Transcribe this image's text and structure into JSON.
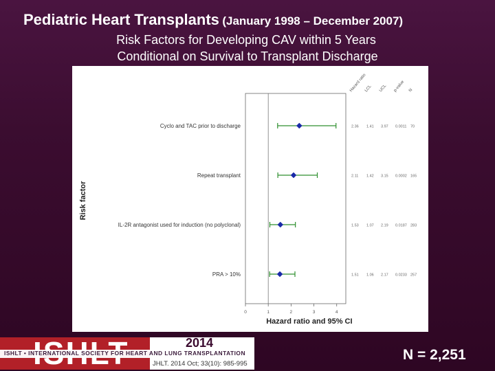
{
  "slide": {
    "title_main": "Pediatric Heart Transplants",
    "title_sub": "(January 1998 – December 2007)",
    "subtitle_line1": "Risk Factors for Developing CAV within 5 Years",
    "subtitle_line2": "Conditional on Survival to Transplant Discharge",
    "n_label": "N = 2,251"
  },
  "footer": {
    "logo_text": "ISHLT",
    "org_name": "ISHLT • INTERNATIONAL SOCIETY FOR HEART AND LUNG TRANSPLANTATION",
    "year": "2014",
    "citation": "JHLT. 2014 Oct; 33(10): 985-995"
  },
  "chart_data": {
    "type": "scatter",
    "subtype": "forest-plot",
    "title": "",
    "xlabel": "Hazard ratio and 95% CI",
    "ylabel": "Risk factor",
    "xlim": [
      0,
      4.4
    ],
    "x_ticks": [
      0,
      1,
      2,
      3,
      4
    ],
    "reference_line_x": 1,
    "grid": false,
    "column_headers": [
      "Hazard ratio",
      "LCL",
      "UCL",
      "p-value",
      "N"
    ],
    "colors": {
      "marker": "#1a2aa8",
      "ci": "#2f8f2f"
    },
    "rows": [
      {
        "label": "Cyclo and TAC prior to discharge",
        "hr": 2.36,
        "lcl": 1.41,
        "ucl": 3.97,
        "p": "0.0011",
        "n": 70
      },
      {
        "label": "Repeat transplant",
        "hr": 2.11,
        "lcl": 1.42,
        "ucl": 3.15,
        "p": "0.0002",
        "n": 165
      },
      {
        "label": "IL-2R antagonist used for induction (no polyclonal)",
        "hr": 1.53,
        "lcl": 1.07,
        "ucl": 2.19,
        "p": "0.0187",
        "n": 283
      },
      {
        "label": "PRA > 10%",
        "hr": 1.51,
        "lcl": 1.06,
        "ucl": 2.17,
        "p": "0.0233",
        "n": 257
      }
    ]
  }
}
